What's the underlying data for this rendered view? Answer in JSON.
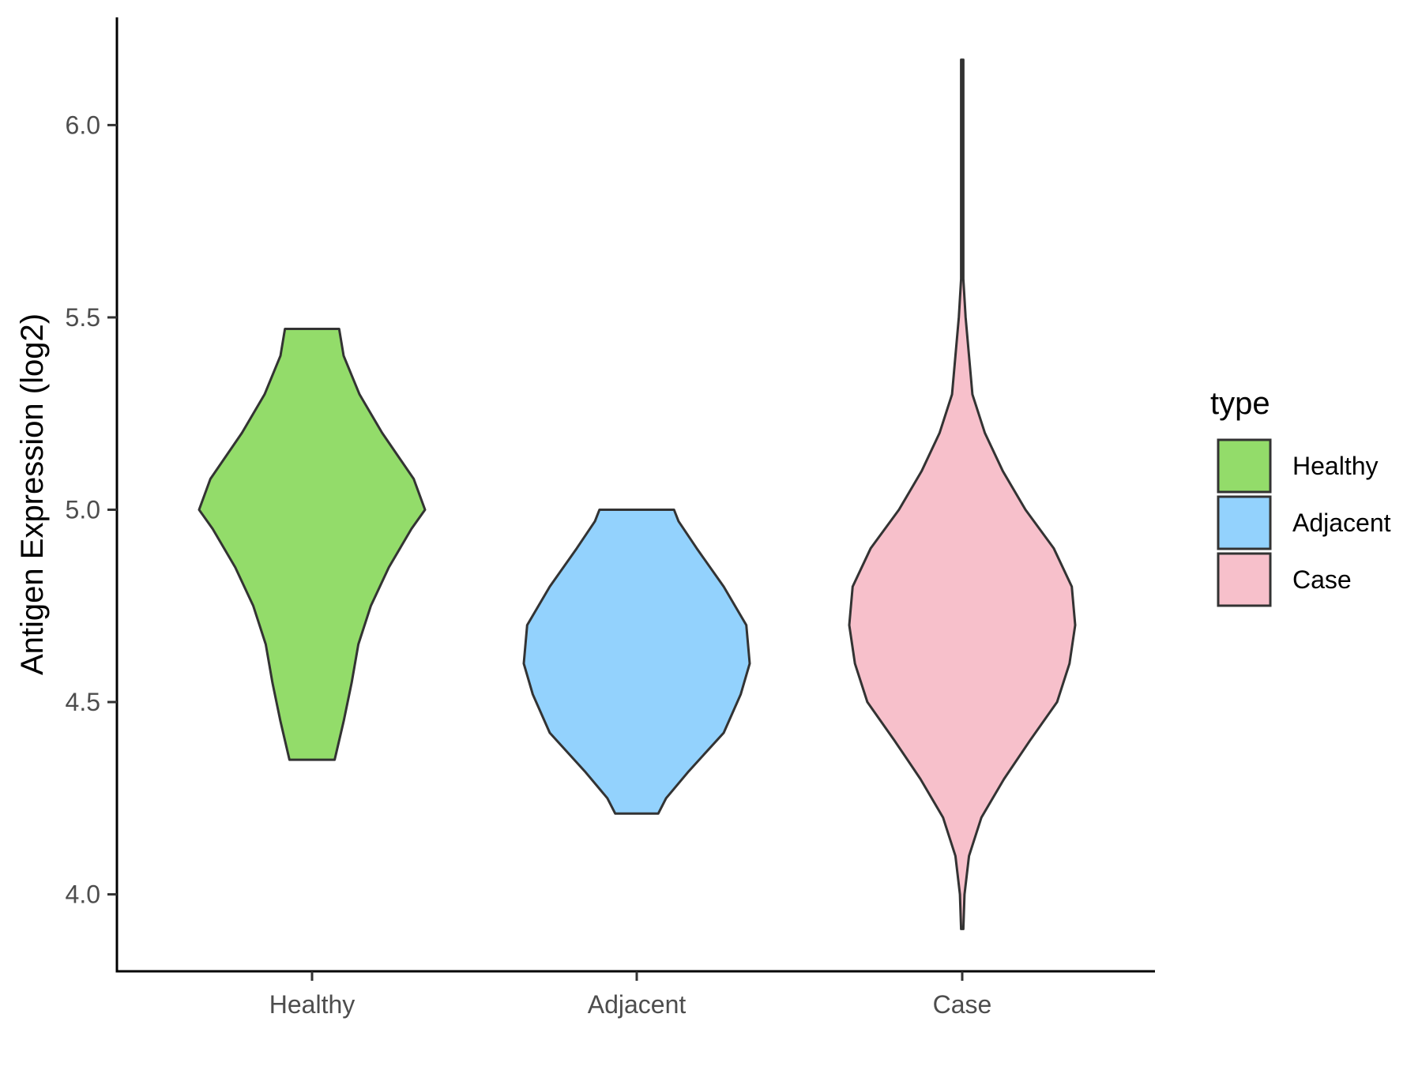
{
  "chart_data": {
    "type": "violin",
    "title": "",
    "xlabel": "",
    "ylabel": "Antigen Expression (log2)",
    "ylim": [
      3.8,
      6.28
    ],
    "yticks": [
      4.0,
      4.5,
      5.0,
      5.5,
      6.0
    ],
    "ytick_labels": [
      "4.0",
      "4.5",
      "5.0",
      "5.5",
      "6.0"
    ],
    "categories": [
      "Healthy",
      "Adjacent",
      "Case"
    ],
    "grid": false,
    "legend": {
      "title": "type",
      "position": "right",
      "entries": [
        {
          "label": "Healthy",
          "color": "#93DC6A"
        },
        {
          "label": "Adjacent",
          "color": "#93D2FD"
        },
        {
          "label": "Case",
          "color": "#F7C0CB"
        }
      ]
    },
    "series": [
      {
        "category": "Healthy",
        "color": "#93DC6A",
        "min": 4.35,
        "max": 5.47,
        "density": [
          [
            4.35,
            0.2
          ],
          [
            4.45,
            0.28
          ],
          [
            4.55,
            0.35
          ],
          [
            4.65,
            0.41
          ],
          [
            4.75,
            0.52
          ],
          [
            4.85,
            0.68
          ],
          [
            4.95,
            0.88
          ],
          [
            5.0,
            1.0
          ],
          [
            5.08,
            0.9
          ],
          [
            5.2,
            0.62
          ],
          [
            5.3,
            0.42
          ],
          [
            5.4,
            0.28
          ],
          [
            5.47,
            0.24
          ]
        ]
      },
      {
        "category": "Adjacent",
        "color": "#93D2FD",
        "min": 4.21,
        "max": 5.0,
        "density": [
          [
            4.21,
            0.19
          ],
          [
            4.25,
            0.26
          ],
          [
            4.32,
            0.46
          ],
          [
            4.42,
            0.77
          ],
          [
            4.52,
            0.92
          ],
          [
            4.6,
            1.0
          ],
          [
            4.7,
            0.97
          ],
          [
            4.8,
            0.77
          ],
          [
            4.9,
            0.53
          ],
          [
            4.97,
            0.37
          ],
          [
            5.0,
            0.33
          ]
        ]
      },
      {
        "category": "Case",
        "color": "#F7C0CB",
        "min": 3.91,
        "max": 6.17,
        "density": [
          [
            3.91,
            0.01
          ],
          [
            4.0,
            0.02
          ],
          [
            4.1,
            0.06
          ],
          [
            4.2,
            0.17
          ],
          [
            4.3,
            0.37
          ],
          [
            4.4,
            0.6
          ],
          [
            4.5,
            0.84
          ],
          [
            4.6,
            0.95
          ],
          [
            4.7,
            1.0
          ],
          [
            4.8,
            0.97
          ],
          [
            4.9,
            0.81
          ],
          [
            5.0,
            0.56
          ],
          [
            5.1,
            0.36
          ],
          [
            5.2,
            0.2
          ],
          [
            5.3,
            0.09
          ],
          [
            5.4,
            0.06
          ],
          [
            5.5,
            0.03
          ],
          [
            5.6,
            0.01
          ],
          [
            5.8,
            0.01
          ],
          [
            6.17,
            0.01
          ]
        ]
      }
    ]
  }
}
